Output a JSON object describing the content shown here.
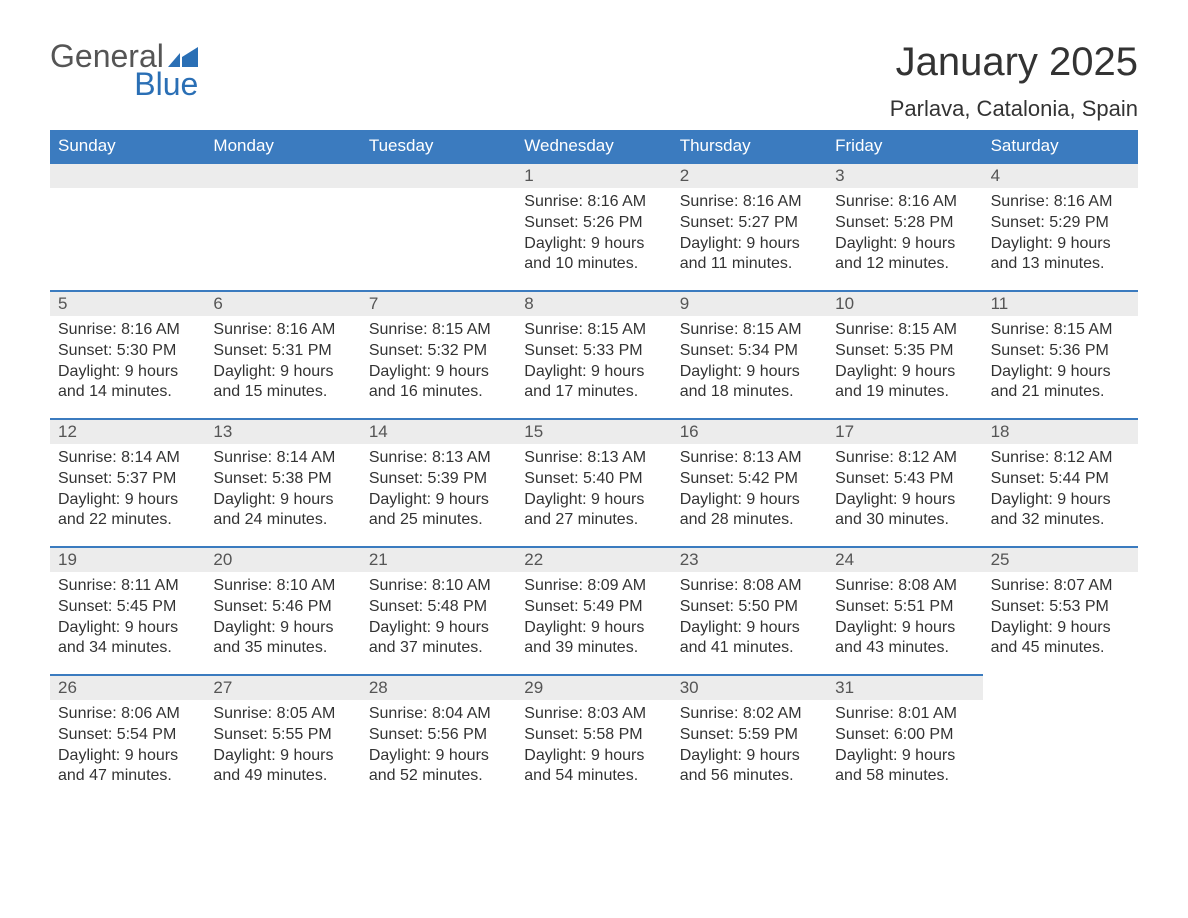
{
  "brand": {
    "line1": "General",
    "line2": "Blue",
    "icon_color": "#2a6fb5",
    "line1_color": "#555555",
    "line2_color": "#2a6fb5"
  },
  "header": {
    "title": "January 2025",
    "location": "Parlava, Catalonia, Spain"
  },
  "calendar": {
    "weekday_header_bg": "#3b7bbf",
    "weekday_header_fg": "#ffffff",
    "day_number_bg": "#ececec",
    "day_number_border": "#3b7bbf",
    "text_color": "#333333",
    "weekdays": [
      "Sunday",
      "Monday",
      "Tuesday",
      "Wednesday",
      "Thursday",
      "Friday",
      "Saturday"
    ],
    "weeks": [
      [
        {
          "empty": true
        },
        {
          "empty": true
        },
        {
          "empty": true
        },
        {
          "day": "1",
          "sunrise": "Sunrise: 8:16 AM",
          "sunset": "Sunset: 5:26 PM",
          "daylight1": "Daylight: 9 hours",
          "daylight2": "and 10 minutes."
        },
        {
          "day": "2",
          "sunrise": "Sunrise: 8:16 AM",
          "sunset": "Sunset: 5:27 PM",
          "daylight1": "Daylight: 9 hours",
          "daylight2": "and 11 minutes."
        },
        {
          "day": "3",
          "sunrise": "Sunrise: 8:16 AM",
          "sunset": "Sunset: 5:28 PM",
          "daylight1": "Daylight: 9 hours",
          "daylight2": "and 12 minutes."
        },
        {
          "day": "4",
          "sunrise": "Sunrise: 8:16 AM",
          "sunset": "Sunset: 5:29 PM",
          "daylight1": "Daylight: 9 hours",
          "daylight2": "and 13 minutes."
        }
      ],
      [
        {
          "day": "5",
          "sunrise": "Sunrise: 8:16 AM",
          "sunset": "Sunset: 5:30 PM",
          "daylight1": "Daylight: 9 hours",
          "daylight2": "and 14 minutes."
        },
        {
          "day": "6",
          "sunrise": "Sunrise: 8:16 AM",
          "sunset": "Sunset: 5:31 PM",
          "daylight1": "Daylight: 9 hours",
          "daylight2": "and 15 minutes."
        },
        {
          "day": "7",
          "sunrise": "Sunrise: 8:15 AM",
          "sunset": "Sunset: 5:32 PM",
          "daylight1": "Daylight: 9 hours",
          "daylight2": "and 16 minutes."
        },
        {
          "day": "8",
          "sunrise": "Sunrise: 8:15 AM",
          "sunset": "Sunset: 5:33 PM",
          "daylight1": "Daylight: 9 hours",
          "daylight2": "and 17 minutes."
        },
        {
          "day": "9",
          "sunrise": "Sunrise: 8:15 AM",
          "sunset": "Sunset: 5:34 PM",
          "daylight1": "Daylight: 9 hours",
          "daylight2": "and 18 minutes."
        },
        {
          "day": "10",
          "sunrise": "Sunrise: 8:15 AM",
          "sunset": "Sunset: 5:35 PM",
          "daylight1": "Daylight: 9 hours",
          "daylight2": "and 19 minutes."
        },
        {
          "day": "11",
          "sunrise": "Sunrise: 8:15 AM",
          "sunset": "Sunset: 5:36 PM",
          "daylight1": "Daylight: 9 hours",
          "daylight2": "and 21 minutes."
        }
      ],
      [
        {
          "day": "12",
          "sunrise": "Sunrise: 8:14 AM",
          "sunset": "Sunset: 5:37 PM",
          "daylight1": "Daylight: 9 hours",
          "daylight2": "and 22 minutes."
        },
        {
          "day": "13",
          "sunrise": "Sunrise: 8:14 AM",
          "sunset": "Sunset: 5:38 PM",
          "daylight1": "Daylight: 9 hours",
          "daylight2": "and 24 minutes."
        },
        {
          "day": "14",
          "sunrise": "Sunrise: 8:13 AM",
          "sunset": "Sunset: 5:39 PM",
          "daylight1": "Daylight: 9 hours",
          "daylight2": "and 25 minutes."
        },
        {
          "day": "15",
          "sunrise": "Sunrise: 8:13 AM",
          "sunset": "Sunset: 5:40 PM",
          "daylight1": "Daylight: 9 hours",
          "daylight2": "and 27 minutes."
        },
        {
          "day": "16",
          "sunrise": "Sunrise: 8:13 AM",
          "sunset": "Sunset: 5:42 PM",
          "daylight1": "Daylight: 9 hours",
          "daylight2": "and 28 minutes."
        },
        {
          "day": "17",
          "sunrise": "Sunrise: 8:12 AM",
          "sunset": "Sunset: 5:43 PM",
          "daylight1": "Daylight: 9 hours",
          "daylight2": "and 30 minutes."
        },
        {
          "day": "18",
          "sunrise": "Sunrise: 8:12 AM",
          "sunset": "Sunset: 5:44 PM",
          "daylight1": "Daylight: 9 hours",
          "daylight2": "and 32 minutes."
        }
      ],
      [
        {
          "day": "19",
          "sunrise": "Sunrise: 8:11 AM",
          "sunset": "Sunset: 5:45 PM",
          "daylight1": "Daylight: 9 hours",
          "daylight2": "and 34 minutes."
        },
        {
          "day": "20",
          "sunrise": "Sunrise: 8:10 AM",
          "sunset": "Sunset: 5:46 PM",
          "daylight1": "Daylight: 9 hours",
          "daylight2": "and 35 minutes."
        },
        {
          "day": "21",
          "sunrise": "Sunrise: 8:10 AM",
          "sunset": "Sunset: 5:48 PM",
          "daylight1": "Daylight: 9 hours",
          "daylight2": "and 37 minutes."
        },
        {
          "day": "22",
          "sunrise": "Sunrise: 8:09 AM",
          "sunset": "Sunset: 5:49 PM",
          "daylight1": "Daylight: 9 hours",
          "daylight2": "and 39 minutes."
        },
        {
          "day": "23",
          "sunrise": "Sunrise: 8:08 AM",
          "sunset": "Sunset: 5:50 PM",
          "daylight1": "Daylight: 9 hours",
          "daylight2": "and 41 minutes."
        },
        {
          "day": "24",
          "sunrise": "Sunrise: 8:08 AM",
          "sunset": "Sunset: 5:51 PM",
          "daylight1": "Daylight: 9 hours",
          "daylight2": "and 43 minutes."
        },
        {
          "day": "25",
          "sunrise": "Sunrise: 8:07 AM",
          "sunset": "Sunset: 5:53 PM",
          "daylight1": "Daylight: 9 hours",
          "daylight2": "and 45 minutes."
        }
      ],
      [
        {
          "day": "26",
          "sunrise": "Sunrise: 8:06 AM",
          "sunset": "Sunset: 5:54 PM",
          "daylight1": "Daylight: 9 hours",
          "daylight2": "and 47 minutes."
        },
        {
          "day": "27",
          "sunrise": "Sunrise: 8:05 AM",
          "sunset": "Sunset: 5:55 PM",
          "daylight1": "Daylight: 9 hours",
          "daylight2": "and 49 minutes."
        },
        {
          "day": "28",
          "sunrise": "Sunrise: 8:04 AM",
          "sunset": "Sunset: 5:56 PM",
          "daylight1": "Daylight: 9 hours",
          "daylight2": "and 52 minutes."
        },
        {
          "day": "29",
          "sunrise": "Sunrise: 8:03 AM",
          "sunset": "Sunset: 5:58 PM",
          "daylight1": "Daylight: 9 hours",
          "daylight2": "and 54 minutes."
        },
        {
          "day": "30",
          "sunrise": "Sunrise: 8:02 AM",
          "sunset": "Sunset: 5:59 PM",
          "daylight1": "Daylight: 9 hours",
          "daylight2": "and 56 minutes."
        },
        {
          "day": "31",
          "sunrise": "Sunrise: 8:01 AM",
          "sunset": "Sunset: 6:00 PM",
          "daylight1": "Daylight: 9 hours",
          "daylight2": "and 58 minutes."
        },
        {
          "empty": true,
          "trailing": true
        }
      ]
    ]
  }
}
